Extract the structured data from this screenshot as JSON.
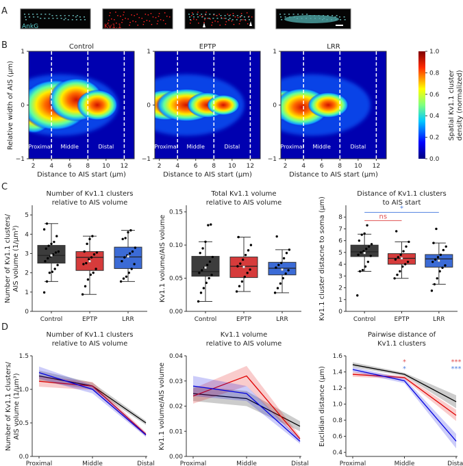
{
  "panel_labels": [
    "A",
    "B",
    "C",
    "D"
  ],
  "panel_a": {
    "images": [
      {
        "label": "AnkG",
        "color": "#5fd3d3"
      },
      {
        "label": "Kv1.1",
        "color": "#e02020"
      },
      {
        "label": "",
        "color": ""
      },
      {
        "label": "",
        "color": ""
      }
    ]
  },
  "colors": {
    "Control": "#3c3c3c",
    "EPTP": "#d63b3b",
    "LRR": "#3b6bd6",
    "line_control": "#000000",
    "line_eptp": "#e00000",
    "line_lrr": "#0000e0"
  },
  "chart_data": [
    {
      "type": "heatmap",
      "panel": "B",
      "titles": [
        "Control",
        "EPTP",
        "LRR"
      ],
      "xlabel": "Distance to AIS start (µm)",
      "ylabel": "Relative width of AIS (µm)",
      "xticks": [
        2,
        4,
        6,
        8,
        10,
        12
      ],
      "yticks": [
        1,
        0,
        -1
      ],
      "xlim": [
        1.5,
        13.1
      ],
      "ylim": [
        -1,
        1
      ],
      "region_bounds": [
        4,
        8,
        12
      ],
      "regions": [
        "Proximal",
        "Middle",
        "Distal"
      ],
      "colorbar": {
        "label": "Spatial Kv1.1 cluster density (normalized)",
        "ticks": [
          1.0,
          0.8,
          0.6,
          0.4,
          0.2,
          0.0
        ],
        "range": [
          0,
          1
        ]
      }
    },
    {
      "type": "box",
      "panel": "C",
      "title": "Number of Kv1.1 clusters relative to AIS volume",
      "ylabel": "Number of Kv1.1 clusters/ AIS volume (1/µm³)",
      "ylim": [
        0,
        5.5
      ],
      "yticks": [
        0,
        1,
        2,
        3,
        4,
        5
      ],
      "yticklabels": [
        "0",
        "1",
        "2",
        "3",
        "4",
        "5"
      ],
      "groups": [
        {
          "name": "Control",
          "min": 1.55,
          "q1": 2.5,
          "median": 2.9,
          "q3": 3.42,
          "max": 4.55,
          "mean": 2.9,
          "points": [
            0.98,
            1.55,
            2.0,
            2.05,
            2.2,
            2.4,
            2.6,
            2.75,
            2.85,
            2.95,
            3.05,
            3.1,
            3.25,
            3.4,
            3.5,
            3.6,
            3.9,
            4.25,
            4.55
          ]
        },
        {
          "name": "EPTP",
          "min": 0.88,
          "q1": 2.12,
          "median": 2.8,
          "q3": 3.1,
          "max": 3.9,
          "mean": 2.6,
          "points": [
            0.88,
            1.3,
            1.65,
            1.9,
            2.0,
            2.2,
            2.45,
            2.5,
            2.7,
            2.8,
            2.95,
            3.05,
            3.1,
            3.5,
            3.75,
            3.9
          ]
        },
        {
          "name": "LRR",
          "min": 1.55,
          "q1": 2.22,
          "median": 2.82,
          "q3": 3.33,
          "max": 4.2,
          "mean": 2.85,
          "points": [
            1.55,
            1.7,
            1.8,
            2.0,
            2.2,
            2.45,
            2.6,
            2.8,
            2.9,
            3.0,
            3.1,
            3.3,
            3.75,
            3.8,
            4.1,
            4.2
          ]
        }
      ]
    },
    {
      "type": "box",
      "panel": "C",
      "title": "Total Kv1.1 volume relative to AIS volume",
      "ylabel": "Kv1.1 volume/AIS volume",
      "ylim": [
        0,
        0.16
      ],
      "yticks": [
        0,
        0.05,
        0.1,
        0.15
      ],
      "yticklabels": [
        "0.00",
        "0.05",
        "0.10",
        "0.15"
      ],
      "groups": [
        {
          "name": "Control",
          "min": 0.015,
          "q1": 0.053,
          "median": 0.06,
          "q3": 0.083,
          "max": 0.105,
          "mean": 0.066,
          "points": [
            0.015,
            0.028,
            0.035,
            0.043,
            0.05,
            0.055,
            0.058,
            0.062,
            0.066,
            0.07,
            0.075,
            0.082,
            0.088,
            0.095,
            0.105,
            0.13,
            0.131
          ]
        },
        {
          "name": "EPTP",
          "min": 0.03,
          "q1": 0.051,
          "median": 0.068,
          "q3": 0.082,
          "max": 0.112,
          "mean": 0.067,
          "points": [
            0.03,
            0.038,
            0.045,
            0.052,
            0.058,
            0.063,
            0.068,
            0.072,
            0.078,
            0.085,
            0.092,
            0.1,
            0.112
          ]
        },
        {
          "name": "LRR",
          "min": 0.028,
          "q1": 0.055,
          "median": 0.065,
          "q3": 0.074,
          "max": 0.093,
          "mean": 0.063,
          "points": [
            0.028,
            0.035,
            0.042,
            0.05,
            0.057,
            0.062,
            0.066,
            0.07,
            0.073,
            0.08,
            0.088,
            0.093,
            0.113
          ]
        }
      ]
    },
    {
      "type": "box",
      "panel": "C",
      "title": "Distance of Kv1.1 clusters to AIS start",
      "ylabel": "Kv1.1 cluster distacne to soma (µm)",
      "ylim": [
        0,
        9
      ],
      "yticks": [
        0,
        1,
        2,
        3,
        4,
        5,
        6,
        7,
        8
      ],
      "yticklabels": [
        "0",
        "1",
        "2",
        "3",
        "4",
        "5",
        "6",
        "7",
        "8"
      ],
      "groups": [
        {
          "name": "Control",
          "min": 3.4,
          "q1": 4.65,
          "median": 5.05,
          "q3": 5.62,
          "max": 6.55,
          "mean": 4.95,
          "points": [
            1.35,
            3.4,
            3.5,
            3.8,
            4.2,
            4.7,
            4.8,
            5.0,
            5.1,
            5.3,
            5.5,
            5.7,
            6.0,
            6.5,
            6.6,
            7.3
          ]
        },
        {
          "name": "EPTP",
          "min": 2.8,
          "q1": 4.0,
          "median": 4.5,
          "q3": 4.9,
          "max": 5.9,
          "mean": 4.5,
          "points": [
            2.8,
            3.1,
            3.4,
            3.8,
            4.0,
            4.2,
            4.4,
            4.6,
            4.8,
            5.1,
            5.5,
            5.9,
            6.8
          ]
        },
        {
          "name": "LRR",
          "min": 2.3,
          "q1": 3.75,
          "median": 4.45,
          "q3": 4.82,
          "max": 5.8,
          "mean": 4.3,
          "points": [
            1.75,
            2.3,
            2.8,
            3.4,
            3.7,
            3.9,
            4.2,
            4.4,
            4.6,
            4.8,
            5.2,
            5.5,
            5.8,
            7.0
          ]
        }
      ],
      "annotations": [
        {
          "text": "ns",
          "from": "Control",
          "to": "EPTP",
          "y": 7.7,
          "color": "#e05050"
        },
        {
          "text": "*",
          "from": "Control",
          "to": "LRR",
          "y": 8.4,
          "color": "#5080e0"
        }
      ]
    },
    {
      "type": "line",
      "panel": "D",
      "title": "Number of Kv1.1 clusters relative to AIS volume",
      "ylabel": "Number of Kv1.1 clusters/ AIS volume (1/µm³)",
      "categories": [
        "Proximal",
        "Middle",
        "Distal"
      ],
      "ylim": [
        0,
        1.5
      ],
      "yticks": [
        0,
        0.5,
        1.0,
        1.5
      ],
      "yticklabels": [
        "0.0",
        "0.5",
        "1.0",
        "1.5"
      ],
      "series": [
        {
          "name": "Control",
          "values": [
            1.2,
            1.05,
            0.5
          ],
          "err": [
            0.08,
            0.05,
            0.03
          ]
        },
        {
          "name": "EPTP",
          "values": [
            1.12,
            1.05,
            0.33
          ],
          "err": [
            0.08,
            0.06,
            0.03
          ]
        },
        {
          "name": "LRR",
          "values": [
            1.25,
            1.0,
            0.32
          ],
          "err": [
            0.09,
            0.06,
            0.03
          ]
        }
      ]
    },
    {
      "type": "line",
      "panel": "D",
      "title": "Kv1.1 volume relative to AIS volume",
      "ylabel": "Kv1.1 volume/AIS volume",
      "categories": [
        "Proximal",
        "Middle",
        "Distal"
      ],
      "ylim": [
        0,
        0.04
      ],
      "yticks": [
        0,
        0.01,
        0.02,
        0.03,
        0.04
      ],
      "yticklabels": [
        "0.00",
        "0.01",
        "0.02",
        "0.03",
        "0.04"
      ],
      "series": [
        {
          "name": "Control",
          "values": [
            0.025,
            0.023,
            0.012
          ],
          "err": [
            0.003,
            0.003,
            0.002
          ]
        },
        {
          "name": "EPTP",
          "values": [
            0.024,
            0.032,
            0.007
          ],
          "err": [
            0.003,
            0.004,
            0.001
          ]
        },
        {
          "name": "LRR",
          "values": [
            0.028,
            0.025,
            0.006
          ],
          "err": [
            0.004,
            0.003,
            0.001
          ]
        }
      ]
    },
    {
      "type": "line",
      "panel": "D",
      "title": "Pairwise distance of Kv1.1 clusters",
      "ylabel": "Euclidian distance (µm)",
      "categories": [
        "Proximal",
        "Middle",
        "Distal"
      ],
      "ylim": [
        0.35,
        1.6
      ],
      "yticks": [
        0.4,
        0.6,
        0.8,
        1.0,
        1.2,
        1.4,
        1.6
      ],
      "yticklabels": [
        "0.4",
        "0.6",
        "0.8",
        "1.0",
        "1.2",
        "1.4",
        "1.6"
      ],
      "series": [
        {
          "name": "Control",
          "values": [
            1.49,
            1.37,
            1.03
          ],
          "err": [
            0.03,
            0.02,
            0.08
          ]
        },
        {
          "name": "EPTP",
          "values": [
            1.37,
            1.33,
            0.86
          ],
          "err": [
            0.03,
            0.02,
            0.07
          ]
        },
        {
          "name": "LRR",
          "values": [
            1.43,
            1.29,
            0.54
          ],
          "err": [
            0.03,
            0.03,
            0.09
          ]
        }
      ],
      "annotations": [
        {
          "text": "*",
          "category": "Middle",
          "color": "#e05050",
          "row": 0
        },
        {
          "text": "*",
          "category": "Middle",
          "color": "#5080e0",
          "row": 1
        },
        {
          "text": "***",
          "category": "Distal",
          "color": "#e05050",
          "row": 0
        },
        {
          "text": "***",
          "category": "Distal",
          "color": "#5080e0",
          "row": 1
        }
      ]
    }
  ]
}
